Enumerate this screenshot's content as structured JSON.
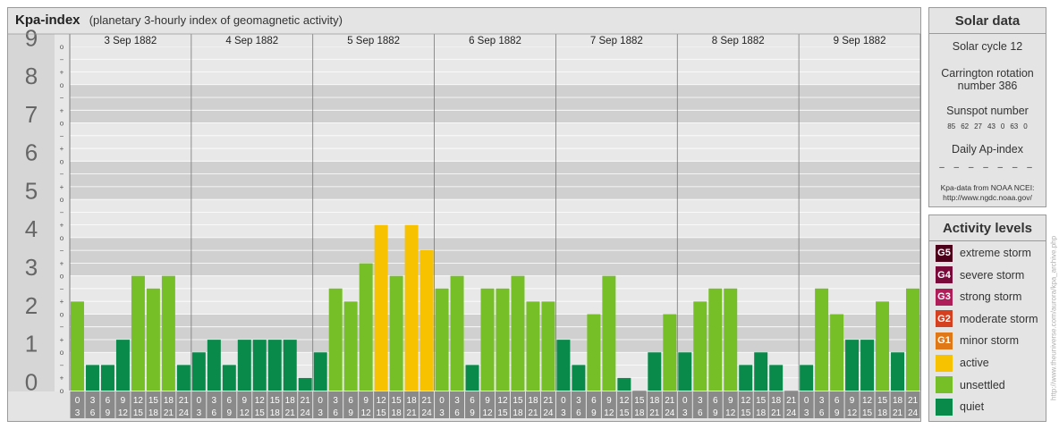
{
  "header": {
    "title": "Kpa-index",
    "subtitle": "(planetary 3-hourly index of geomagnetic activity)"
  },
  "chart_data": {
    "type": "bar",
    "ylim": [
      0,
      9
    ],
    "y_major_ticks": [
      "0",
      "1",
      "2",
      "3",
      "4",
      "5",
      "6",
      "7",
      "8",
      "9"
    ],
    "y_minor_marks": [
      "o",
      "+",
      "−",
      "o"
    ],
    "days": [
      "3 Sep 1882",
      "4 Sep 1882",
      "5 Sep 1882",
      "6 Sep 1882",
      "7 Sep 1882",
      "8 Sep 1882",
      "9 Sep 1882"
    ],
    "interval_labels": [
      [
        "0",
        "3"
      ],
      [
        "3",
        "6"
      ],
      [
        "6",
        "9"
      ],
      [
        "9",
        "12"
      ],
      [
        "12",
        "15"
      ],
      [
        "15",
        "18"
      ],
      [
        "18",
        "21"
      ],
      [
        "21",
        "24"
      ]
    ],
    "values": [
      [
        2.33,
        0.67,
        0.67,
        1.33,
        3.0,
        2.67,
        3.0,
        0.67
      ],
      [
        1.0,
        1.33,
        0.67,
        1.33,
        1.33,
        1.33,
        1.33,
        0.33
      ],
      [
        1.0,
        2.67,
        2.33,
        3.33,
        4.33,
        3.0,
        4.33,
        3.67
      ],
      [
        2.67,
        3.0,
        0.67,
        2.67,
        2.67,
        3.0,
        2.33,
        2.33
      ],
      [
        1.33,
        0.67,
        2.0,
        3.0,
        0.33,
        0.0,
        1.0,
        2.0
      ],
      [
        1.0,
        2.33,
        2.67,
        2.67,
        0.67,
        1.0,
        0.67,
        0.0
      ],
      [
        0.67,
        2.67,
        2.0,
        1.33,
        1.33,
        2.33,
        1.0,
        2.67
      ]
    ],
    "grid": true,
    "legend": "right"
  },
  "solar": {
    "title": "Solar data",
    "cycle": "Solar cycle 12",
    "carrington_line1": "Carrington rotation",
    "carrington_line2": "number 386",
    "sunspot_title": "Sunspot number",
    "sunspots": [
      "85",
      "62",
      "27",
      "43",
      "0",
      "63",
      "0"
    ],
    "ap_title": "Daily Ap-index",
    "ap_values": "– – – – – – –",
    "source_line1": "Kpa-data from NOAA NCEI:",
    "source_line2": "http://www.ngdc.noaa.gov/"
  },
  "activity": {
    "title": "Activity levels",
    "levels": [
      {
        "code": "G5",
        "label": "extreme storm",
        "color": "#4d0019"
      },
      {
        "code": "G4",
        "label": "severe storm",
        "color": "#7a0a3a"
      },
      {
        "code": "G3",
        "label": "strong storm",
        "color": "#b01e5a"
      },
      {
        "code": "G2",
        "label": "moderate storm",
        "color": "#d44020"
      },
      {
        "code": "G1",
        "label": "minor storm",
        "color": "#e07818"
      },
      {
        "code": "",
        "label": "active",
        "color": "#f7c200"
      },
      {
        "code": "",
        "label": "unsettled",
        "color": "#76bf26"
      },
      {
        "code": "",
        "label": "quiet",
        "color": "#0a8a4a"
      }
    ]
  },
  "watermark": "http://www.theuniverse.com/aurora/kpa_archive.php"
}
